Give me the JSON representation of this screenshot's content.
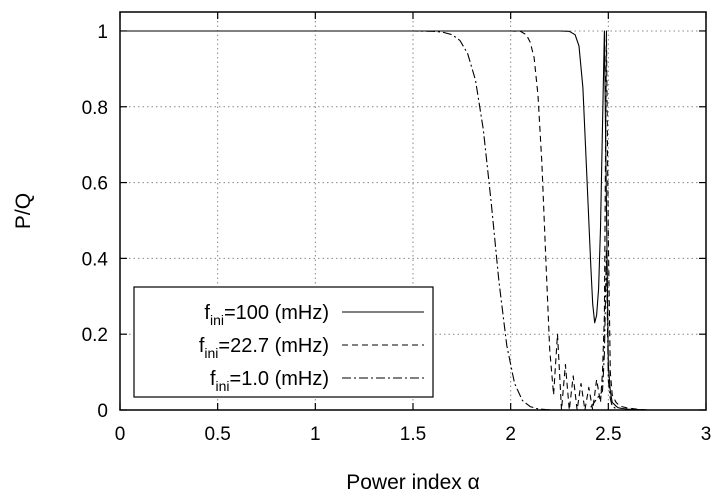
{
  "chart_data": {
    "type": "line",
    "title": "",
    "xlabel": "Power index α",
    "ylabel": "P/Q",
    "xlim": [
      0,
      3
    ],
    "ylim": [
      0,
      1.05
    ],
    "xticks": [
      0,
      0.5,
      1,
      1.5,
      2,
      2.5,
      3
    ],
    "xtick_labels": [
      "0",
      "0.5",
      "1",
      "1.5",
      "2",
      "2.5",
      "3"
    ],
    "yticks": [
      0,
      0.2,
      0.4,
      0.6,
      0.8,
      1
    ],
    "ytick_labels": [
      "0",
      "0.2",
      "0.4",
      "0.6",
      "0.8",
      "1"
    ],
    "grid": true,
    "legend_position": "bottom-left",
    "series": [
      {
        "name": "f_ini=100 (mHz)",
        "label_parts": [
          "f",
          "ini",
          "=100 (mHz)"
        ],
        "style": "solid",
        "x": [
          0,
          1.5,
          2.0,
          2.25,
          2.3,
          2.33,
          2.35,
          2.37,
          2.39,
          2.41,
          2.42,
          2.43,
          2.44,
          2.45,
          2.46,
          2.47,
          2.48,
          2.49,
          2.5,
          2.51,
          2.52,
          2.53,
          2.54,
          2.55,
          2.57,
          2.6,
          2.65,
          2.7
        ],
        "y": [
          1.0,
          1.0,
          1.0,
          1.0,
          0.999,
          0.99,
          0.96,
          0.85,
          0.62,
          0.38,
          0.28,
          0.23,
          0.25,
          0.32,
          0.48,
          0.75,
          1.0,
          0.55,
          0.12,
          0.05,
          0.02,
          0.015,
          0.01,
          0.006,
          0.004,
          0.002,
          0.001,
          0.0
        ]
      },
      {
        "name": "f_ini=22.7 (mHz)",
        "label_parts": [
          "f",
          "ini",
          "=22.7 (mHz)"
        ],
        "style": "dashed",
        "x": [
          0,
          1.5,
          2.0,
          2.05,
          2.08,
          2.1,
          2.12,
          2.14,
          2.16,
          2.18,
          2.2,
          2.22,
          2.24,
          2.26,
          2.28,
          2.3,
          2.32,
          2.34,
          2.36,
          2.38,
          2.4,
          2.42,
          2.44,
          2.46,
          2.47,
          2.48,
          2.49,
          2.5,
          2.51,
          2.52,
          2.54,
          2.56,
          2.6,
          2.65,
          2.7
        ],
        "y": [
          1.0,
          1.0,
          1.0,
          0.999,
          0.99,
          0.97,
          0.93,
          0.83,
          0.65,
          0.4,
          0.16,
          0.04,
          0.2,
          0.0,
          0.12,
          0.0,
          0.09,
          0.0,
          0.07,
          0.0,
          0.06,
          0.0,
          0.08,
          0.02,
          0.1,
          0.25,
          1.0,
          0.46,
          0.1,
          0.04,
          0.02,
          0.01,
          0.005,
          0.002,
          0.0
        ]
      },
      {
        "name": "f_ini=1.0 (mHz)",
        "label_parts": [
          "f",
          "ini",
          "=1.0 (mHz)"
        ],
        "style": "dashdot",
        "x": [
          0,
          1.5,
          1.6,
          1.65,
          1.7,
          1.74,
          1.78,
          1.82,
          1.86,
          1.9,
          1.94,
          1.98,
          2.02,
          2.06,
          2.1,
          2.14,
          2.18,
          2.22,
          2.3,
          2.4,
          2.47,
          2.48,
          2.49,
          2.5,
          2.51,
          2.52,
          2.55,
          2.6,
          2.7
        ],
        "y": [
          1.0,
          1.0,
          0.999,
          0.997,
          0.99,
          0.975,
          0.94,
          0.87,
          0.74,
          0.55,
          0.34,
          0.17,
          0.07,
          0.025,
          0.009,
          0.003,
          0.001,
          0.0,
          0.0,
          0.0,
          0.05,
          0.15,
          0.42,
          0.08,
          0.03,
          0.01,
          0.0,
          0.0,
          0.0
        ]
      }
    ]
  }
}
